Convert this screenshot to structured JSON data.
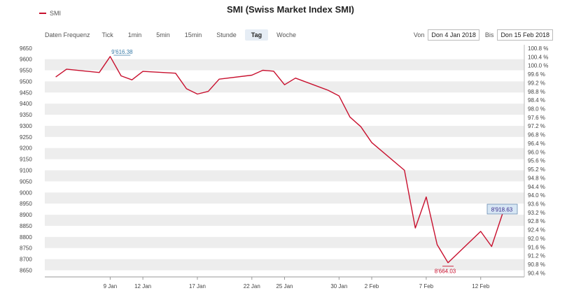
{
  "legend": {
    "label": "SMI"
  },
  "title": "SMI (Swiss Market Index SMI)",
  "toolbar": {
    "freq_label": "Daten Frequenz",
    "buttons": [
      "Tick",
      "1min",
      "5min",
      "15min",
      "Stunde",
      "Tag",
      "Woche"
    ],
    "active": "Tag",
    "from_label": "Von",
    "from_value": "Don 4 Jan 2018",
    "to_label": "Bis",
    "to_value": "Don 15 Feb 2018"
  },
  "colors": {
    "line": "#c8102e",
    "band": "#ededed",
    "high_label": "#3a7ca8",
    "low_label": "#c8102e",
    "last_label": "#3a2a8a",
    "last_box": "#d6e6f4"
  },
  "chart_data": {
    "type": "line",
    "title": "SMI (Swiss Market Index SMI)",
    "series": [
      {
        "name": "SMI",
        "x": [
          "2018-01-04",
          "2018-01-05",
          "2018-01-08",
          "2018-01-09",
          "2018-01-10",
          "2018-01-11",
          "2018-01-12",
          "2018-01-15",
          "2018-01-16",
          "2018-01-17",
          "2018-01-18",
          "2018-01-19",
          "2018-01-22",
          "2018-01-23",
          "2018-01-24",
          "2018-01-25",
          "2018-01-26",
          "2018-01-29",
          "2018-01-30",
          "2018-01-31",
          "2018-02-01",
          "2018-02-02",
          "2018-02-05",
          "2018-02-06",
          "2018-02-07",
          "2018-02-08",
          "2018-02-09",
          "2018-02-12",
          "2018-02-13",
          "2018-02-14",
          "2018-02-15"
        ],
        "values": [
          9520,
          9555,
          9540,
          9612,
          9525,
          9507,
          9545,
          9537,
          9467,
          9443,
          9455,
          9510,
          9528,
          9550,
          9546,
          9485,
          9515,
          9460,
          9435,
          9340,
          9296,
          9225,
          9100,
          8840,
          8980,
          8765,
          8684,
          8825,
          8757,
          8905,
          8919
        ]
      }
    ],
    "x_tick_labels": [
      "9 Jan",
      "12 Jan",
      "17 Jan",
      "22 Jan",
      "25 Jan",
      "30 Jan",
      "2 Feb",
      "7 Feb",
      "12 Feb"
    ],
    "x_tick_dates": [
      "2018-01-09",
      "2018-01-12",
      "2018-01-17",
      "2018-01-22",
      "2018-01-25",
      "2018-01-30",
      "2018-02-02",
      "2018-02-07",
      "2018-02-12"
    ],
    "y_left_ticks": [
      "9650",
      "9600",
      "9550",
      "9500",
      "9450",
      "9400",
      "9350",
      "9300",
      "9250",
      "9200",
      "9150",
      "9100",
      "9050",
      "9000",
      "8950",
      "8900",
      "8850",
      "8800",
      "8750",
      "8700",
      "8650"
    ],
    "y_right_ticks": [
      "100.8 %",
      "100.4 %",
      "100.0 %",
      "99.6 %",
      "99.2 %",
      "98.8 %",
      "98.4 %",
      "98.0 %",
      "97.6 %",
      "97.2 %",
      "96.8 %",
      "96.4 %",
      "96.0 %",
      "95.6 %",
      "95.2 %",
      "94.8 %",
      "94.4 %",
      "94.0 %",
      "93.6 %",
      "93.2 %",
      "92.8 %",
      "92.4 %",
      "92.0 %",
      "91.6 %",
      "91.2 %",
      "90.8 %",
      "90.4 %"
    ],
    "ylim": [
      8620,
      9665
    ],
    "y_right_lim": [
      90.22,
      100.96
    ],
    "annotations": {
      "high": "9'616.38",
      "low": "8'664.03",
      "last": "8'918.63"
    },
    "grid": "alternating horizontal bands",
    "legend_position": "top-left"
  }
}
